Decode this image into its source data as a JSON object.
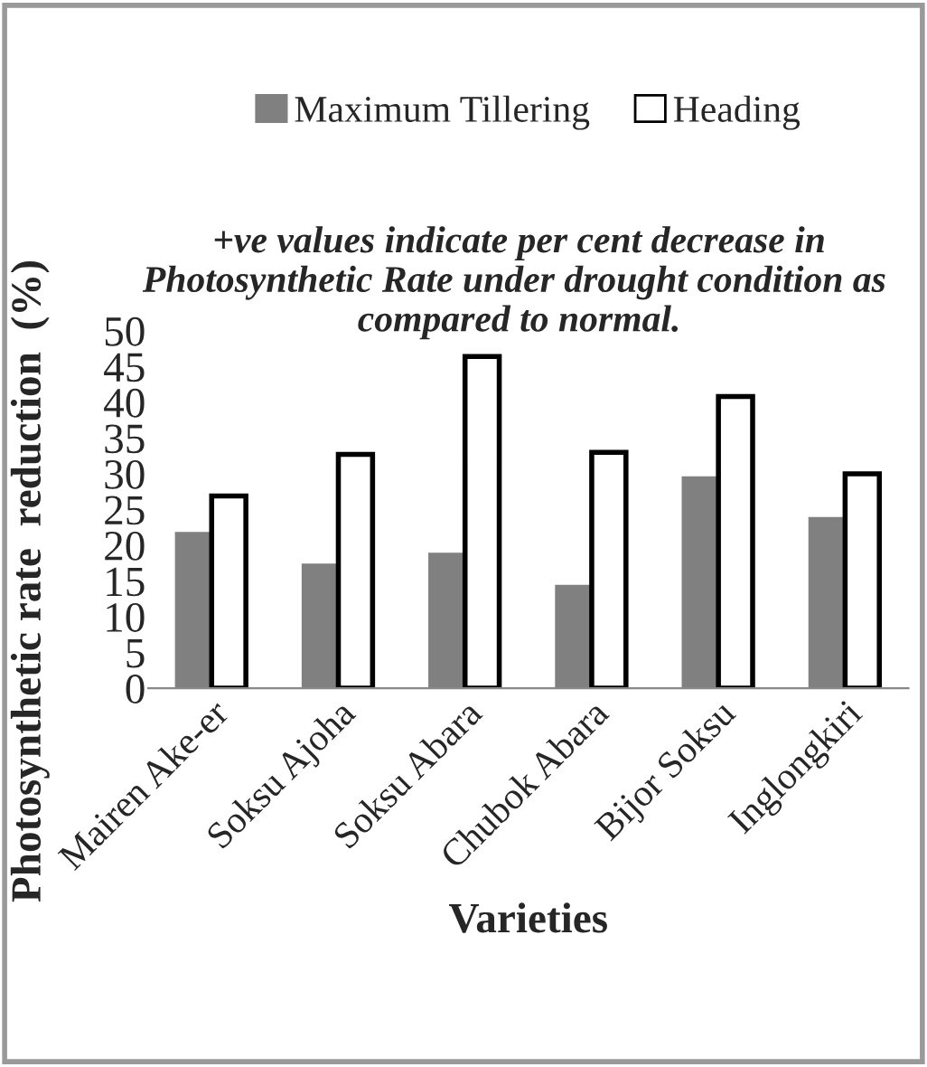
{
  "chart_data": {
    "type": "bar",
    "subtitle": "+ve values indicate per cent decrease in Photosynthetic Rate under drought condition as  compared to normal.",
    "xlabel": "Varieties",
    "ylabel": "Photosynthetic rate  reduction  (%)",
    "categories": [
      "Mairen Ake-er",
      "Soksu Ajoha",
      "Soksu Abara",
      "Chubok Abara",
      "Bijor Soksu",
      "Inglongkiri"
    ],
    "series": [
      {
        "name": "Maximum Tillering",
        "color": "#808080",
        "values": [
          21.5,
          17.1,
          18.6,
          14.1,
          29.3,
          23.6
        ]
      },
      {
        "name": "Heading",
        "color": "#ffffff",
        "values": [
          26.9,
          32.7,
          46.4,
          33.0,
          40.8,
          30.0
        ]
      }
    ],
    "ylim": [
      0,
      50
    ],
    "yticks": [
      0,
      5,
      10,
      15,
      20,
      25,
      30,
      35,
      40,
      45,
      50
    ],
    "legend": "top",
    "grid": false
  }
}
